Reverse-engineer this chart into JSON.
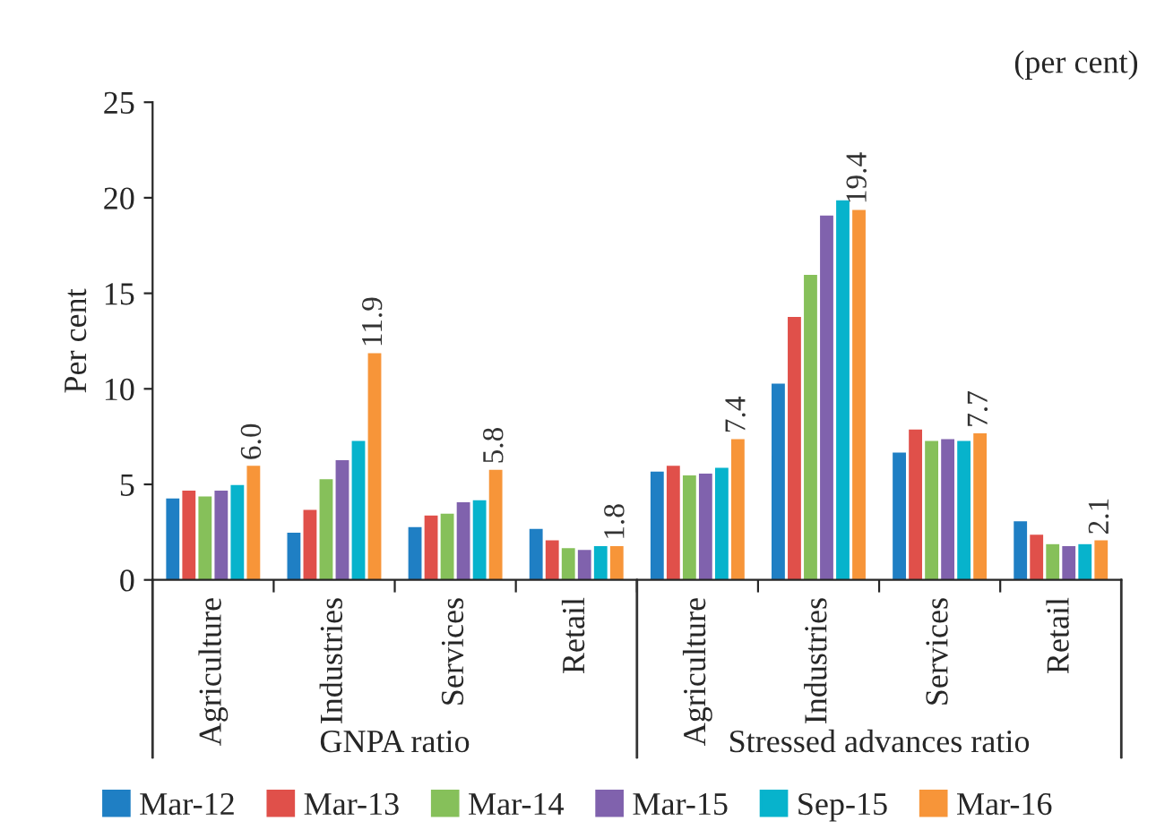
{
  "chart_data": {
    "type": "bar",
    "ylabel": "Per cent",
    "categories": [
      "Agriculture",
      "Industries",
      "Services",
      "Retail",
      "Agriculture",
      "Industries",
      "Services",
      "Retail"
    ],
    "series": [
      {
        "name": "Mar-12",
        "color": "#1f7fc4",
        "values": [
          4.3,
          2.5,
          2.8,
          2.7,
          5.7,
          10.3,
          6.7,
          3.1
        ]
      },
      {
        "name": "Mar-13",
        "color": "#e0504a",
        "values": [
          4.7,
          3.7,
          3.4,
          2.1,
          6.0,
          13.8,
          7.9,
          2.4
        ]
      },
      {
        "name": "Mar-14",
        "color": "#86c05a",
        "values": [
          4.4,
          5.3,
          3.5,
          1.7,
          5.5,
          16.0,
          7.3,
          1.9
        ]
      },
      {
        "name": "Mar-15",
        "color": "#8062ad",
        "values": [
          4.7,
          6.3,
          4.1,
          1.6,
          5.6,
          19.1,
          7.4,
          1.8
        ]
      },
      {
        "name": "Sep-15",
        "color": "#07b3cc",
        "values": [
          5.0,
          7.3,
          4.2,
          1.8,
          5.9,
          19.9,
          7.3,
          1.9
        ]
      },
      {
        "name": "Mar-16",
        "color": "#f79539",
        "values": [
          6.0,
          11.9,
          5.8,
          1.8,
          7.4,
          19.4,
          7.7,
          2.1
        ],
        "value_labels": [
          "6.0",
          "11.9",
          "5.8",
          "1.8",
          "7.4",
          "19.4",
          "7.7",
          "2.1"
        ]
      }
    ],
    "ylim": [
      0,
      25
    ],
    "yticks": [
      0,
      5,
      10,
      15,
      20,
      25
    ],
    "grid": false,
    "legend": "bottom",
    "annotations": [
      "(per cent)",
      "GNPA ratio",
      "Stressed advances ratio"
    ]
  }
}
